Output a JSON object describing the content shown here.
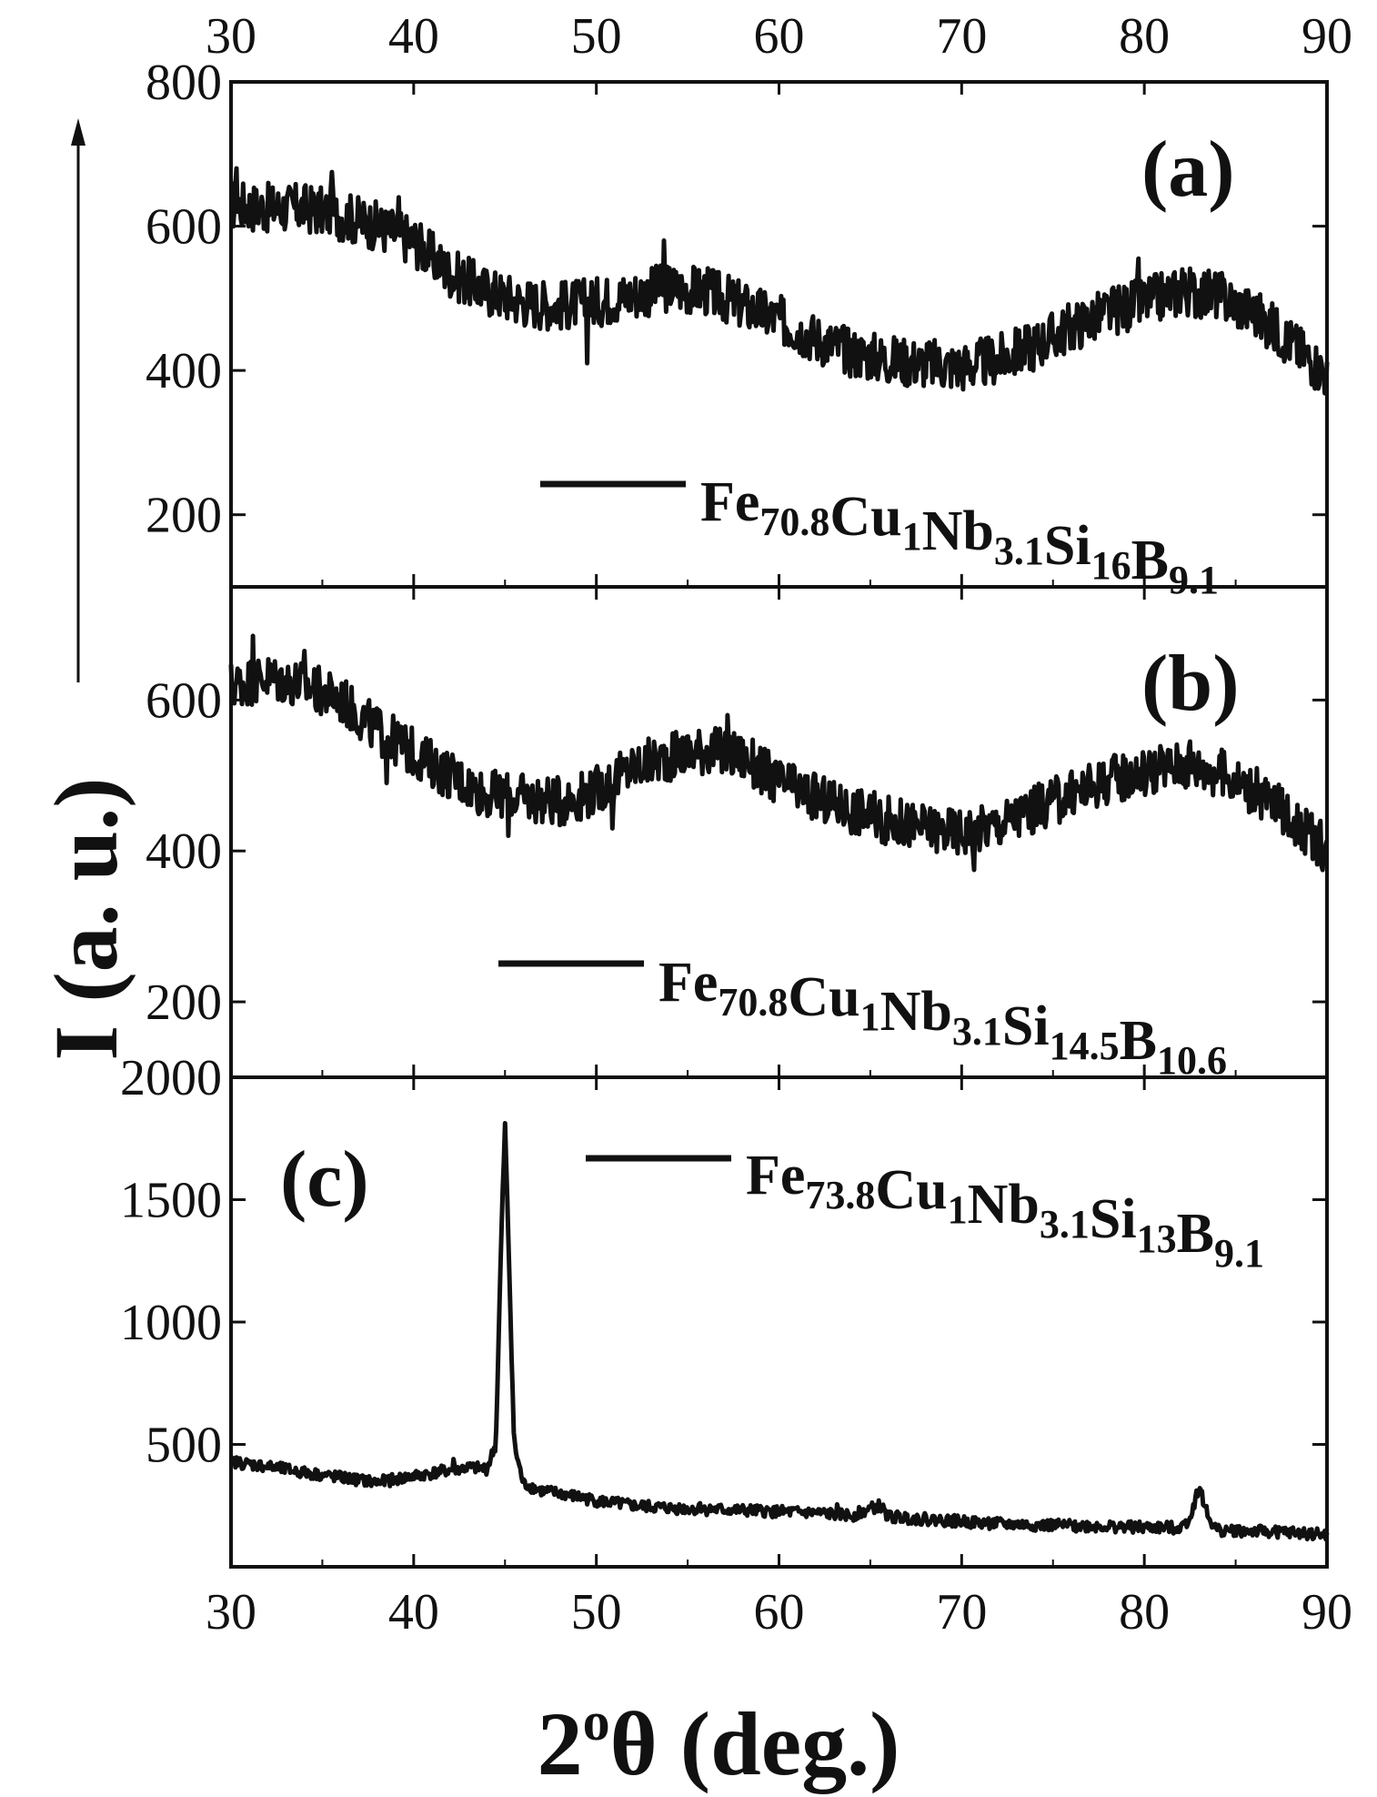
{
  "chart_data": [
    {
      "type": "line",
      "panel_label": "(a)",
      "xlim": [
        30,
        90
      ],
      "ylim": [
        100,
        800
      ],
      "yticks": [
        200,
        400,
        600,
        800
      ],
      "legend_position": "lower-right",
      "series": [
        {
          "name": "Fe70.8Cu1Nb3.1Si16B9.1",
          "name_parts": [
            [
              "Fe",
              "70.8"
            ],
            [
              "Cu",
              "1"
            ],
            [
              "Nb",
              "3.1"
            ],
            [
              "Si",
              "16"
            ],
            [
              "B",
              "9.1"
            ]
          ],
          "x": [
            30,
            32,
            34,
            36,
            38,
            40,
            42,
            44,
            46,
            48,
            50,
            52,
            54,
            56,
            58,
            60,
            62,
            64,
            66,
            68,
            70,
            72,
            74,
            76,
            78,
            80,
            82,
            84,
            86,
            88,
            90
          ],
          "y": [
            630,
            625,
            625,
            615,
            600,
            580,
            535,
            510,
            495,
            490,
            495,
            505,
            515,
            510,
            490,
            470,
            445,
            425,
            415,
            410,
            405,
            415,
            435,
            460,
            480,
            495,
            510,
            505,
            480,
            440,
            395
          ],
          "spikes": [
            [
              30.3,
              680
            ],
            [
              35.5,
              675
            ],
            [
              39.2,
              640
            ],
            [
              49.5,
              410
            ],
            [
              53.7,
              580
            ],
            [
              79.7,
              555
            ],
            [
              82.1,
              540
            ]
          ]
        }
      ]
    },
    {
      "type": "line",
      "panel_label": "(b)",
      "xlim": [
        30,
        90
      ],
      "ylim": [
        100,
        750
      ],
      "yticks": [
        200,
        400,
        600
      ],
      "legend_position": "lower-right",
      "series": [
        {
          "name": "Fe70.8Cu1Nb3.1Si14.5B10.6",
          "name_parts": [
            [
              "Fe",
              "70.8"
            ],
            [
              "Cu",
              "1"
            ],
            [
              "Nb",
              "3.1"
            ],
            [
              "Si",
              "14.5"
            ],
            [
              "B",
              "10.6"
            ]
          ],
          "x": [
            30,
            32,
            34,
            36,
            38,
            40,
            42,
            44,
            46,
            48,
            50,
            52,
            54,
            56,
            58,
            60,
            62,
            64,
            66,
            68,
            70,
            72,
            74,
            76,
            78,
            80,
            82,
            84,
            86,
            88,
            90
          ],
          "y": [
            620,
            630,
            620,
            600,
            560,
            530,
            500,
            475,
            470,
            465,
            480,
            510,
            525,
            535,
            525,
            490,
            470,
            455,
            440,
            430,
            425,
            435,
            455,
            475,
            495,
            505,
            515,
            505,
            480,
            445,
            400
          ],
          "spikes": [
            [
              31.2,
              685
            ],
            [
              34,
              665
            ],
            [
              38.5,
              490
            ],
            [
              45.2,
              420
            ],
            [
              50.9,
              430
            ],
            [
              57.2,
              580
            ],
            [
              70.7,
              375
            ],
            [
              82.5,
              545
            ]
          ]
        }
      ]
    },
    {
      "type": "line",
      "panel_label": "(c)",
      "xlim": [
        30,
        90
      ],
      "ylim": [
        0,
        2000
      ],
      "yticks": [
        500,
        1000,
        1500,
        2000
      ],
      "legend_position": "top-right",
      "series": [
        {
          "name": "Fe73.8Cu1Nb3.1Si13B9.1",
          "name_parts": [
            [
              "Fe",
              "73.8"
            ],
            [
              "Cu",
              "1"
            ],
            [
              "Nb",
              "3.1"
            ],
            [
              "Si",
              "13"
            ],
            [
              "B",
              "9.1"
            ]
          ],
          "x": [
            30,
            32,
            34,
            36,
            38,
            40,
            42,
            43,
            44,
            44.5,
            44.8,
            45.0,
            45.2,
            45.5,
            46,
            47,
            48,
            50,
            52,
            54,
            56,
            58,
            60,
            62,
            64,
            65.5,
            66,
            68,
            70,
            72,
            74,
            76,
            78,
            80,
            82,
            82.5,
            83.0,
            83.5,
            84,
            86,
            88,
            90
          ],
          "y": [
            430,
            410,
            385,
            365,
            345,
            370,
            395,
            405,
            400,
            500,
            1350,
            1800,
            1300,
            500,
            340,
            310,
            300,
            270,
            250,
            240,
            235,
            230,
            225,
            220,
            210,
            250,
            205,
            195,
            185,
            175,
            170,
            168,
            165,
            160,
            160,
            200,
            330,
            200,
            150,
            145,
            140,
            130
          ],
          "spikes": [
            [
              42.2,
              440
            ],
            [
              55.7,
              260
            ],
            [
              63.2,
              255
            ],
            [
              71.8,
              195
            ],
            [
              76.2,
              185
            ]
          ]
        }
      ]
    }
  ],
  "x_axis": {
    "ticks": [
      30,
      40,
      50,
      60,
      70,
      80,
      90
    ],
    "title_base": "2",
    "title_sup": "o",
    "title_rest": "θ (deg.)"
  },
  "y_axis": {
    "title": "I (a. u.)"
  },
  "colors": {
    "line": "#111111",
    "axes": "#111111",
    "background": "#ffffff"
  }
}
